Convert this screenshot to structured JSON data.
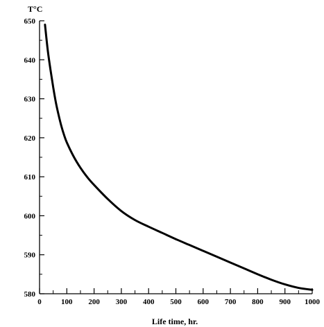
{
  "chart_data": {
    "type": "line",
    "ylabel": "T°C",
    "xlabel": "Life time, hr.",
    "xlim": [
      0,
      1000
    ],
    "ylim": [
      580,
      650
    ],
    "x_ticks": [
      0,
      100,
      200,
      300,
      400,
      500,
      600,
      700,
      800,
      900,
      1000
    ],
    "y_ticks": [
      580,
      590,
      600,
      610,
      620,
      630,
      640,
      650
    ],
    "grid": false,
    "series": [
      {
        "x": [
          20,
          30,
          40,
          50,
          60,
          70,
          80,
          90,
          100,
          125,
          150,
          175,
          200,
          250,
          300,
          350,
          400,
          450,
          500,
          550,
          600,
          650,
          700,
          750,
          800,
          850,
          900,
          950,
          1000
        ],
        "y": [
          649,
          642.5,
          637.5,
          633,
          629,
          625.8,
          623,
          620.7,
          618.8,
          615.2,
          612.3,
          609.9,
          607.9,
          604.3,
          601.2,
          598.9,
          597.2,
          595.6,
          594.0,
          592.5,
          591.0,
          589.5,
          588.0,
          586.5,
          585.0,
          583.6,
          582.4,
          581.5,
          581.0
        ],
        "color": "#000000"
      }
    ]
  }
}
